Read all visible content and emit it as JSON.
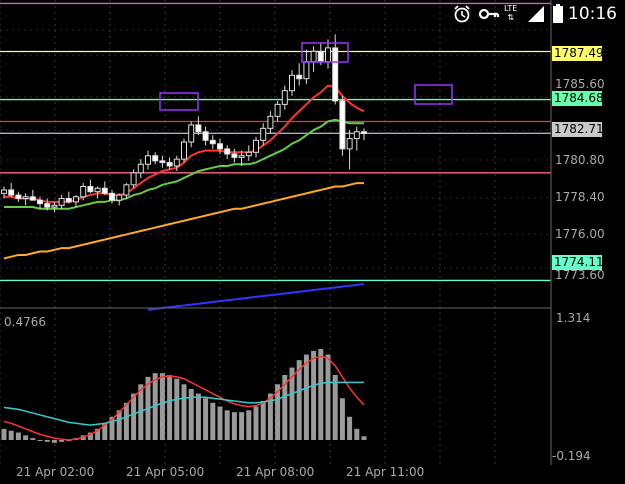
{
  "status_bar": {
    "time": "10:16",
    "network": "LTE",
    "icons": [
      "alarm-icon",
      "key-icon",
      "signal-icon",
      "battery-icon"
    ]
  },
  "price_tags": [
    {
      "label": "1787.49",
      "color": "#ffff66",
      "price": 1787.49
    },
    {
      "label": "1784.68",
      "color": "#66ffaa",
      "price": 1784.68
    },
    {
      "label": "1782.71",
      "color": "#c8c8c8",
      "price": 1782.71
    },
    {
      "label": "1774.11",
      "color": "#66ffcc",
      "price": 1774.11
    }
  ],
  "price_axis": {
    "labels": [
      "1785.60",
      "1780.80",
      "1778.40",
      "1776.00",
      "1773.60"
    ]
  },
  "indicator_axis": {
    "top_label": "1.314",
    "bottom_label": "-0.194"
  },
  "indicator_value": "0.4766",
  "time_axis": {
    "labels": [
      "21 Apr 02:00",
      "21 Apr 05:00",
      "21 Apr 08:00",
      "21 Apr 11:00"
    ]
  },
  "chart_data": {
    "type": "line",
    "ylim": [
      1772.5,
      1790.5
    ],
    "horizontal_levels": [
      1790.3,
      1787.49,
      1784.68,
      1783.4,
      1782.71,
      1780.4,
      1774.11
    ],
    "level_colors": [
      "#cc66cc",
      "#ffff66",
      "#66ffaa",
      "#ff3333",
      "#aaaacc",
      "#ff6688",
      "#66ffcc"
    ],
    "candles": [
      [
        1779.2,
        1779.6,
        1778.9,
        1779.4
      ],
      [
        1779.4,
        1779.8,
        1779.0,
        1779.1
      ],
      [
        1779.1,
        1779.3,
        1778.7,
        1778.9
      ],
      [
        1778.9,
        1779.2,
        1778.5,
        1779.0
      ],
      [
        1779.0,
        1779.4,
        1778.8,
        1778.8
      ],
      [
        1778.8,
        1779.0,
        1778.3,
        1778.6
      ],
      [
        1778.6,
        1778.9,
        1778.2,
        1778.4
      ],
      [
        1778.4,
        1778.7,
        1778.1,
        1778.5
      ],
      [
        1778.5,
        1779.1,
        1778.3,
        1778.9
      ],
      [
        1778.9,
        1779.3,
        1778.6,
        1778.7
      ],
      [
        1778.7,
        1779.1,
        1778.4,
        1779.0
      ],
      [
        1779.0,
        1779.8,
        1778.8,
        1779.6
      ],
      [
        1779.6,
        1780.0,
        1779.2,
        1779.3
      ],
      [
        1779.3,
        1779.6,
        1778.9,
        1779.5
      ],
      [
        1779.5,
        1779.9,
        1779.1,
        1779.2
      ],
      [
        1779.2,
        1779.4,
        1778.6,
        1778.8
      ],
      [
        1778.8,
        1779.2,
        1778.5,
        1779.1
      ],
      [
        1779.1,
        1779.8,
        1778.9,
        1779.7
      ],
      [
        1779.7,
        1780.6,
        1779.5,
        1780.4
      ],
      [
        1780.4,
        1781.2,
        1780.1,
        1780.9
      ],
      [
        1780.9,
        1781.7,
        1780.6,
        1781.4
      ],
      [
        1781.4,
        1781.6,
        1780.9,
        1781.1
      ],
      [
        1781.1,
        1781.4,
        1780.7,
        1781.0
      ],
      [
        1781.0,
        1781.3,
        1780.6,
        1780.8
      ],
      [
        1780.8,
        1781.4,
        1780.5,
        1781.2
      ],
      [
        1781.2,
        1782.4,
        1781.0,
        1782.2
      ],
      [
        1782.2,
        1783.4,
        1781.9,
        1783.2
      ],
      [
        1783.2,
        1783.7,
        1782.6,
        1782.8
      ],
      [
        1782.8,
        1783.1,
        1782.0,
        1782.3
      ],
      [
        1782.3,
        1782.6,
        1781.8,
        1782.1
      ],
      [
        1782.1,
        1782.4,
        1781.5,
        1781.8
      ],
      [
        1781.8,
        1782.0,
        1781.2,
        1781.5
      ],
      [
        1781.5,
        1781.8,
        1781.0,
        1781.3
      ],
      [
        1781.3,
        1781.7,
        1780.8,
        1781.4
      ],
      [
        1781.4,
        1782.0,
        1781.1,
        1781.6
      ],
      [
        1781.6,
        1782.5,
        1781.3,
        1782.3
      ],
      [
        1782.3,
        1783.3,
        1782.0,
        1783.0
      ],
      [
        1783.0,
        1784.0,
        1782.7,
        1783.7
      ],
      [
        1783.7,
        1784.6,
        1783.4,
        1784.4
      ],
      [
        1784.4,
        1785.5,
        1784.1,
        1785.2
      ],
      [
        1785.2,
        1786.4,
        1784.9,
        1786.1
      ],
      [
        1786.1,
        1786.8,
        1785.5,
        1785.9
      ],
      [
        1785.9,
        1787.6,
        1785.6,
        1786.9
      ],
      [
        1786.9,
        1787.8,
        1786.3,
        1787.5
      ],
      [
        1787.5,
        1788.0,
        1786.7,
        1786.9
      ],
      [
        1786.9,
        1788.2,
        1786.5,
        1787.7
      ],
      [
        1787.7,
        1788.5,
        1784.4,
        1784.6
      ],
      [
        1784.6,
        1784.9,
        1781.4,
        1781.8
      ],
      [
        1781.8,
        1782.9,
        1780.6,
        1782.4
      ],
      [
        1782.4,
        1783.1,
        1781.7,
        1782.8
      ],
      [
        1782.8,
        1783.0,
        1782.3,
        1782.7
      ]
    ],
    "series": [
      {
        "color": "#ff3333",
        "values": [
          1779.0,
          1779.0,
          1778.9,
          1778.9,
          1778.9,
          1778.8,
          1778.7,
          1778.7,
          1778.7,
          1778.7,
          1778.8,
          1779.0,
          1779.1,
          1779.2,
          1779.2,
          1779.1,
          1779.1,
          1779.2,
          1779.5,
          1779.8,
          1780.1,
          1780.3,
          1780.5,
          1780.6,
          1780.7,
          1781.0,
          1781.4,
          1781.6,
          1781.7,
          1781.7,
          1781.7,
          1781.6,
          1781.6,
          1781.6,
          1781.6,
          1781.7,
          1782.0,
          1782.3,
          1782.7,
          1783.1,
          1783.6,
          1784.0,
          1784.4,
          1784.8,
          1785.1,
          1785.5,
          1785.4,
          1784.9,
          1784.5,
          1784.2,
          1784.0
        ]
      },
      {
        "color": "#66cc44",
        "values": [
          1778.4,
          1778.4,
          1778.4,
          1778.4,
          1778.4,
          1778.3,
          1778.3,
          1778.3,
          1778.3,
          1778.3,
          1778.4,
          1778.5,
          1778.6,
          1778.7,
          1778.7,
          1778.8,
          1778.8,
          1778.9,
          1779.1,
          1779.2,
          1779.4,
          1779.5,
          1779.7,
          1779.8,
          1779.9,
          1780.1,
          1780.3,
          1780.5,
          1780.6,
          1780.7,
          1780.8,
          1780.8,
          1780.9,
          1780.9,
          1780.9,
          1781.0,
          1781.2,
          1781.4,
          1781.6,
          1781.8,
          1782.1,
          1782.3,
          1782.6,
          1782.9,
          1783.1,
          1783.4,
          1783.5,
          1783.4,
          1783.3,
          1783.3,
          1783.3
        ]
      },
      {
        "color": "#ffaa22",
        "values": [
          1775.4,
          1775.5,
          1775.6,
          1775.6,
          1775.7,
          1775.8,
          1775.8,
          1775.9,
          1776.0,
          1776.0,
          1776.1,
          1776.2,
          1776.3,
          1776.4,
          1776.5,
          1776.6,
          1776.7,
          1776.8,
          1776.9,
          1777.0,
          1777.1,
          1777.2,
          1777.3,
          1777.4,
          1777.5,
          1777.6,
          1777.7,
          1777.8,
          1777.9,
          1778.0,
          1778.1,
          1778.2,
          1778.3,
          1778.3,
          1778.4,
          1778.5,
          1778.6,
          1778.7,
          1778.8,
          1778.9,
          1779.0,
          1779.1,
          1779.2,
          1779.3,
          1779.4,
          1779.5,
          1779.6,
          1779.6,
          1779.7,
          1779.8,
          1779.8
        ]
      },
      {
        "color": "#3333ff",
        "values": [
          null,
          null,
          null,
          null,
          null,
          null,
          null,
          null,
          null,
          null,
          null,
          null,
          null,
          null,
          null,
          null,
          null,
          null,
          null,
          null,
          1772.4,
          1772.45,
          1772.5,
          1772.55,
          1772.6,
          1772.65,
          1772.7,
          1772.75,
          1772.8,
          1772.85,
          1772.9,
          1772.95,
          1773.0,
          1773.05,
          1773.1,
          1773.15,
          1773.2,
          1773.25,
          1773.3,
          1773.35,
          1773.4,
          1773.45,
          1773.5,
          1773.55,
          1773.6,
          1773.65,
          1773.7,
          1773.75,
          1773.8,
          1773.85,
          1773.9
        ]
      }
    ],
    "indicator": {
      "ylim": [
        -0.194,
        1.314
      ],
      "histogram": [
        0.12,
        0.1,
        0.08,
        0.05,
        0.02,
        0.0,
        -0.02,
        -0.03,
        -0.02,
        0.0,
        0.02,
        0.05,
        0.08,
        0.12,
        0.18,
        0.25,
        0.32,
        0.4,
        0.5,
        0.6,
        0.68,
        0.72,
        0.72,
        0.7,
        0.66,
        0.6,
        0.55,
        0.5,
        0.45,
        0.4,
        0.36,
        0.32,
        0.3,
        0.3,
        0.32,
        0.36,
        0.42,
        0.5,
        0.6,
        0.7,
        0.78,
        0.86,
        0.92,
        0.96,
        0.98,
        0.92,
        0.7,
        0.45,
        0.25,
        0.12,
        0.04
      ],
      "lines": [
        {
          "color": "#ff3333",
          "values": [
            0.2,
            0.18,
            0.15,
            0.12,
            0.09,
            0.06,
            0.04,
            0.02,
            0.01,
            0.0,
            0.01,
            0.03,
            0.06,
            0.1,
            0.16,
            0.22,
            0.3,
            0.38,
            0.46,
            0.54,
            0.6,
            0.65,
            0.68,
            0.69,
            0.68,
            0.66,
            0.62,
            0.58,
            0.54,
            0.5,
            0.46,
            0.42,
            0.39,
            0.37,
            0.36,
            0.37,
            0.4,
            0.45,
            0.52,
            0.6,
            0.68,
            0.76,
            0.83,
            0.88,
            0.9,
            0.88,
            0.8,
            0.68,
            0.56,
            0.46,
            0.38
          ]
        },
        {
          "color": "#33cccc",
          "values": [
            0.35,
            0.34,
            0.33,
            0.31,
            0.29,
            0.27,
            0.25,
            0.23,
            0.21,
            0.19,
            0.18,
            0.17,
            0.16,
            0.17,
            0.18,
            0.2,
            0.22,
            0.25,
            0.28,
            0.31,
            0.34,
            0.37,
            0.4,
            0.42,
            0.44,
            0.45,
            0.46,
            0.46,
            0.46,
            0.45,
            0.44,
            0.43,
            0.42,
            0.41,
            0.4,
            0.4,
            0.41,
            0.42,
            0.44,
            0.47,
            0.5,
            0.53,
            0.56,
            0.59,
            0.61,
            0.62,
            0.62,
            0.62,
            0.62,
            0.62,
            0.62
          ]
        }
      ]
    }
  }
}
